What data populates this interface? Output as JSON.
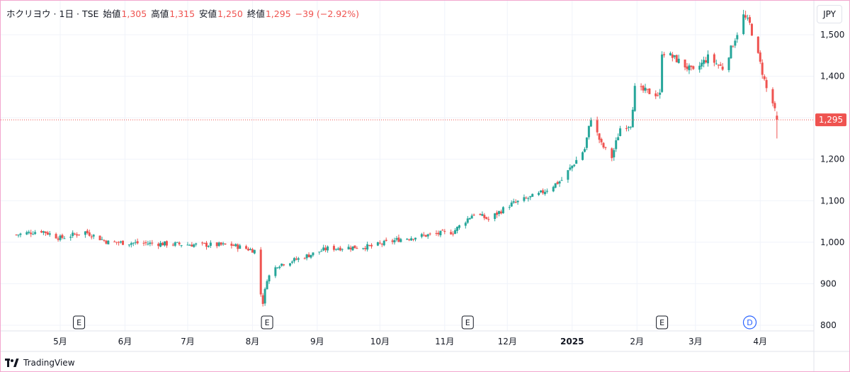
{
  "header": {
    "symbol": "ホクリヨウ",
    "interval": "1日",
    "exchange": "TSE",
    "open_label": "始値",
    "open_value": "1,305",
    "high_label": "高値",
    "high_value": "1,315",
    "low_label": "安値",
    "low_value": "1,250",
    "close_label": "終値",
    "close_value": "1,295",
    "change": "−39 (−2.92%)"
  },
  "currency": "JPY",
  "brand": {
    "name": "TradingView"
  },
  "colors": {
    "up": "#26a69a",
    "down": "#ef5350",
    "grid": "#f0f3fa",
    "marker_blue": "#2962ff"
  },
  "chart_data": {
    "type": "candlestick",
    "ylim": [
      780,
      1570
    ],
    "yticks": [
      800,
      900,
      1000,
      1100,
      1200,
      1300,
      1400,
      1500
    ],
    "ytick_labels": [
      "800",
      "900",
      "1,000",
      "1,100",
      "1,200",
      "1,300",
      "1,400",
      "1,500"
    ],
    "x_labels": [
      {
        "date": "2024-05-01",
        "label": "5月"
      },
      {
        "date": "2024-06-01",
        "label": "6月"
      },
      {
        "date": "2024-07-01",
        "label": "7月"
      },
      {
        "date": "2024-08-01",
        "label": "8月"
      },
      {
        "date": "2024-09-01",
        "label": "9月"
      },
      {
        "date": "2024-10-01",
        "label": "10月"
      },
      {
        "date": "2024-11-01",
        "label": "11月"
      },
      {
        "date": "2024-12-01",
        "label": "12月"
      },
      {
        "date": "2025-01-01",
        "label": "2025"
      },
      {
        "date": "2025-02-01",
        "label": "2月"
      },
      {
        "date": "2025-03-01",
        "label": "3月"
      },
      {
        "date": "2025-04-01",
        "label": "4月"
      }
    ],
    "last_price": 1295,
    "last_price_label": "1,295",
    "markers": [
      {
        "date": "2024-05-10",
        "label": "E",
        "kind": "earnings"
      },
      {
        "date": "2024-08-08",
        "label": "E",
        "kind": "earnings"
      },
      {
        "date": "2024-11-12",
        "label": "E",
        "kind": "earnings"
      },
      {
        "date": "2025-02-13",
        "label": "E",
        "kind": "earnings"
      },
      {
        "date": "2025-03-27",
        "label": "D",
        "kind": "dividend"
      }
    ],
    "key_points": [
      [
        "2024-04-10",
        1018
      ],
      [
        "2024-04-22",
        1028
      ],
      [
        "2024-05-01",
        1010
      ],
      [
        "2024-05-13",
        1025
      ],
      [
        "2024-05-24",
        1000
      ],
      [
        "2024-06-14",
        997
      ],
      [
        "2024-07-05",
        994
      ],
      [
        "2024-07-22",
        993
      ],
      [
        "2024-08-02",
        980
      ],
      [
        "2024-08-05",
        875
      ],
      [
        "2024-08-06",
        855
      ],
      [
        "2024-08-08",
        912
      ],
      [
        "2024-08-13",
        945
      ],
      [
        "2024-08-23",
        960
      ],
      [
        "2024-09-06",
        985
      ],
      [
        "2024-09-27",
        990
      ],
      [
        "2024-10-11",
        1008
      ],
      [
        "2024-10-25",
        1018
      ],
      [
        "2024-11-05",
        1025
      ],
      [
        "2024-11-15",
        1070
      ],
      [
        "2024-11-22",
        1055
      ],
      [
        "2024-12-02",
        1090
      ],
      [
        "2024-12-16",
        1115
      ],
      [
        "2024-12-27",
        1150
      ],
      [
        "2025-01-07",
        1225
      ],
      [
        "2025-01-10",
        1300
      ],
      [
        "2025-01-15",
        1235
      ],
      [
        "2025-01-20",
        1205
      ],
      [
        "2025-01-24",
        1275
      ],
      [
        "2025-01-29",
        1285
      ],
      [
        "2025-01-31",
        1370
      ],
      [
        "2025-02-12",
        1355
      ],
      [
        "2025-02-13",
        1460
      ],
      [
        "2025-02-20",
        1440
      ],
      [
        "2025-02-28",
        1410
      ],
      [
        "2025-03-07",
        1445
      ],
      [
        "2025-03-14",
        1420
      ],
      [
        "2025-03-18",
        1465
      ],
      [
        "2025-03-24",
        1545
      ],
      [
        "2025-03-27",
        1525
      ],
      [
        "2025-04-01",
        1430
      ],
      [
        "2025-04-04",
        1370
      ],
      [
        "2025-04-07",
        1335
      ],
      [
        "2025-04-09",
        1295
      ]
    ],
    "last_candle": {
      "date": "2025-04-09",
      "open": 1305,
      "high": 1315,
      "low": 1250,
      "close": 1295
    }
  }
}
